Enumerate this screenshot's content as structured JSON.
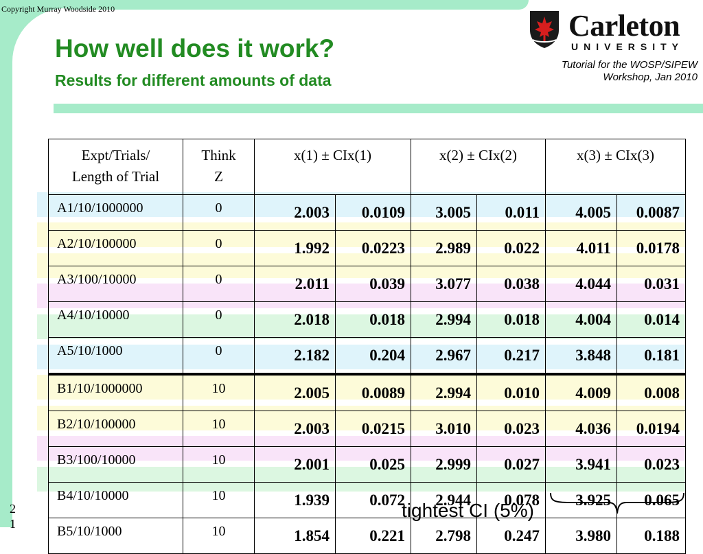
{
  "copyright": "Copyright Murray Woodside 2010",
  "title": "How well does it work?",
  "subtitle": "Results for different amounts of data",
  "logo": {
    "name": "Carleton",
    "subname": "UNIVERSITY"
  },
  "tutorial": {
    "line1": "Tutorial for the WOSP/SIPEW",
    "line2": "Workshop, Jan 2010"
  },
  "table": {
    "headers": {
      "expt_line1": "Expt/Trials/",
      "expt_line2": "Length of Trial",
      "think_line1": "Think",
      "think_line2": "Z",
      "x1": "x(1) ± CIx(1)",
      "x2": "x(2) ± CIx(2)",
      "x3": "x(3) ± CIx(3)"
    },
    "rows": [
      {
        "label": "A1/10/1000000",
        "think": "0",
        "x1": "2.003",
        "ci1": "0.0109",
        "x2": "3.005",
        "ci2": "0.011",
        "x3": "4.005",
        "ci3": "0.0087",
        "band": "#dff4fb"
      },
      {
        "label": "A2/10/100000",
        "think": "0",
        "x1": "1.992",
        "ci1": "0.0223",
        "x2": "2.989",
        "ci2": "0.022",
        "x3": "4.011",
        "ci3": "0.0178",
        "band": "#fdfbd9"
      },
      {
        "label": "A3/100/10000",
        "think": "0",
        "x1": "2.011",
        "ci1": "0.039",
        "x2": "3.077",
        "ci2": "0.038",
        "x3": "4.044",
        "ci3": "0.031",
        "band": "#fdfbd9"
      },
      {
        "label": "A4/10/10000",
        "think": "0",
        "x1": "2.018",
        "ci1": "0.018",
        "x2": "2.994",
        "ci2": "0.018",
        "x3": "4.004",
        "ci3": "0.014",
        "band": "#f9e4f9"
      },
      {
        "label": "A5/10/1000",
        "think": "0",
        "x1": "2.182",
        "ci1": "0.204",
        "x2": "2.967",
        "ci2": "0.217",
        "x3": "3.848",
        "ci3": "0.181",
        "band": "#dcf7e1"
      },
      {
        "label": "B1/10/1000000",
        "think": "10",
        "x1": "2.005",
        "ci1": "0.0089",
        "x2": "2.994",
        "ci2": "0.010",
        "x3": "4.009",
        "ci3": "0.008",
        "band": "#dff4fb"
      },
      {
        "label": "B2/10/100000",
        "think": "10",
        "x1": "2.003",
        "ci1": "0.0215",
        "x2": "3.010",
        "ci2": "0.023",
        "x3": "4.036",
        "ci3": "0.0194",
        "band": "#fdfbd9"
      },
      {
        "label": "B3/100/10000",
        "think": "10",
        "x1": "2.001",
        "ci1": "0.025",
        "x2": "2.999",
        "ci2": "0.027",
        "x3": "3.941",
        "ci3": "0.023",
        "band": "#fdfbd9"
      },
      {
        "label": "B4/10/10000",
        "think": "10",
        "x1": "1.939",
        "ci1": "0.072",
        "x2": "2.944",
        "ci2": "0.078",
        "x3": "3.925",
        "ci3": "0.065",
        "band": "#f9e4f9"
      },
      {
        "label": "B5/10/1000",
        "think": "10",
        "x1": "1.854",
        "ci1": "0.221",
        "x2": "2.798",
        "ci2": "0.247",
        "x3": "3.980",
        "ci3": "0.188",
        "band": "#dcf7e1"
      }
    ]
  },
  "caption": "tightest CI (5%)",
  "page_number": "21",
  "colors": {
    "frame": "#a6ebc9",
    "title": "#228b22"
  }
}
